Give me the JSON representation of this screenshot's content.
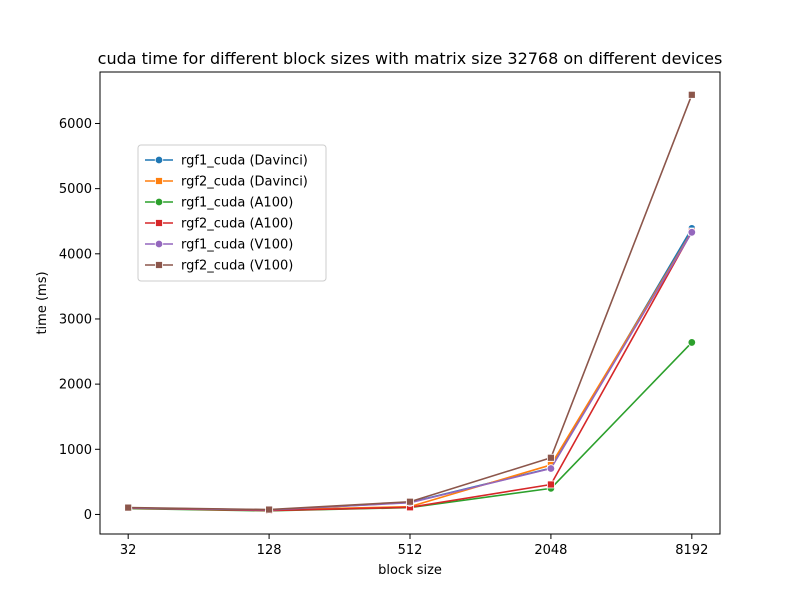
{
  "chart_data": {
    "type": "line",
    "title": "cuda time for different block sizes with matrix size 32768 on different devices",
    "xlabel": "block size",
    "ylabel": "time (ms)",
    "x": [
      32,
      128,
      512,
      2048,
      8192
    ],
    "x_tick_labels": [
      "32",
      "128",
      "512",
      "2048",
      "8192"
    ],
    "y_ticks": [
      0,
      1000,
      2000,
      3000,
      4000,
      5000,
      6000
    ],
    "y_tick_labels": [
      "0",
      "1000",
      "2000",
      "3000",
      "4000",
      "5000",
      "6000"
    ],
    "ylim": [
      -300,
      6790
    ],
    "grid": false,
    "legend_position": "upper-left",
    "series": [
      {
        "name": "rgf1_cuda (Davinci)",
        "color": "#1f77b4",
        "marker": "circle",
        "values": [
          95,
          65,
          185,
          710,
          4390
        ]
      },
      {
        "name": "rgf2_cuda (Davinci)",
        "color": "#ff7f0e",
        "marker": "square",
        "values": [
          100,
          70,
          120,
          760,
          4340
        ]
      },
      {
        "name": "rgf1_cuda (A100)",
        "color": "#2ca02c",
        "marker": "circle",
        "values": [
          90,
          55,
          105,
          400,
          2640
        ]
      },
      {
        "name": "rgf2_cuda (A100)",
        "color": "#d62728",
        "marker": "square",
        "values": [
          95,
          60,
          110,
          460,
          4340
        ]
      },
      {
        "name": "rgf1_cuda (V100)",
        "color": "#9467bd",
        "marker": "circle",
        "values": [
          100,
          70,
          180,
          705,
          4330
        ]
      },
      {
        "name": "rgf2_cuda (V100)",
        "color": "#8c564b",
        "marker": "square",
        "values": [
          105,
          75,
          195,
          870,
          6440
        ]
      }
    ]
  }
}
